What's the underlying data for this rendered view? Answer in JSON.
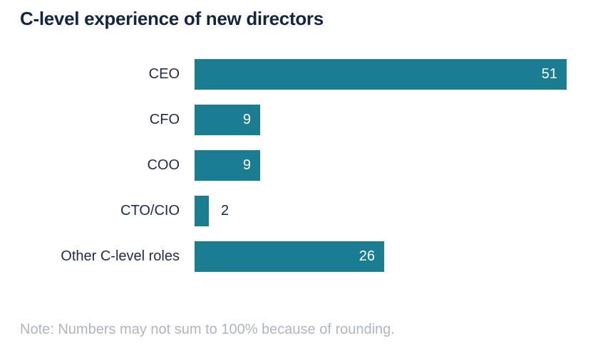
{
  "page": {
    "title": "C-level experience of new directors",
    "note": "Note: Numbers may not sum to 100% because of rounding."
  },
  "colors": {
    "bar": "#1A7D92",
    "title_text": "#14253F",
    "category_label_text": "#1E2B4A",
    "value_label_inside": "#FFFFFF",
    "value_label_outside": "#14253F",
    "note_text": "#AFB6BD",
    "background": "#FFFFFF"
  },
  "chart_data": {
    "type": "bar",
    "orientation": "horizontal",
    "title": "C-level experience of new directors",
    "categories": [
      "CEO",
      "CFO",
      "COO",
      "CTO/CIO",
      "Other C-level roles"
    ],
    "values": [
      51,
      9,
      9,
      2,
      26
    ],
    "xlabel": "",
    "ylabel": "",
    "xlim": [
      0,
      51
    ],
    "grid": false,
    "axes_visible": false,
    "legend": "none",
    "value_labels": "at-bar-end",
    "note": "Note: Numbers may not sum to 100% because of rounding."
  }
}
